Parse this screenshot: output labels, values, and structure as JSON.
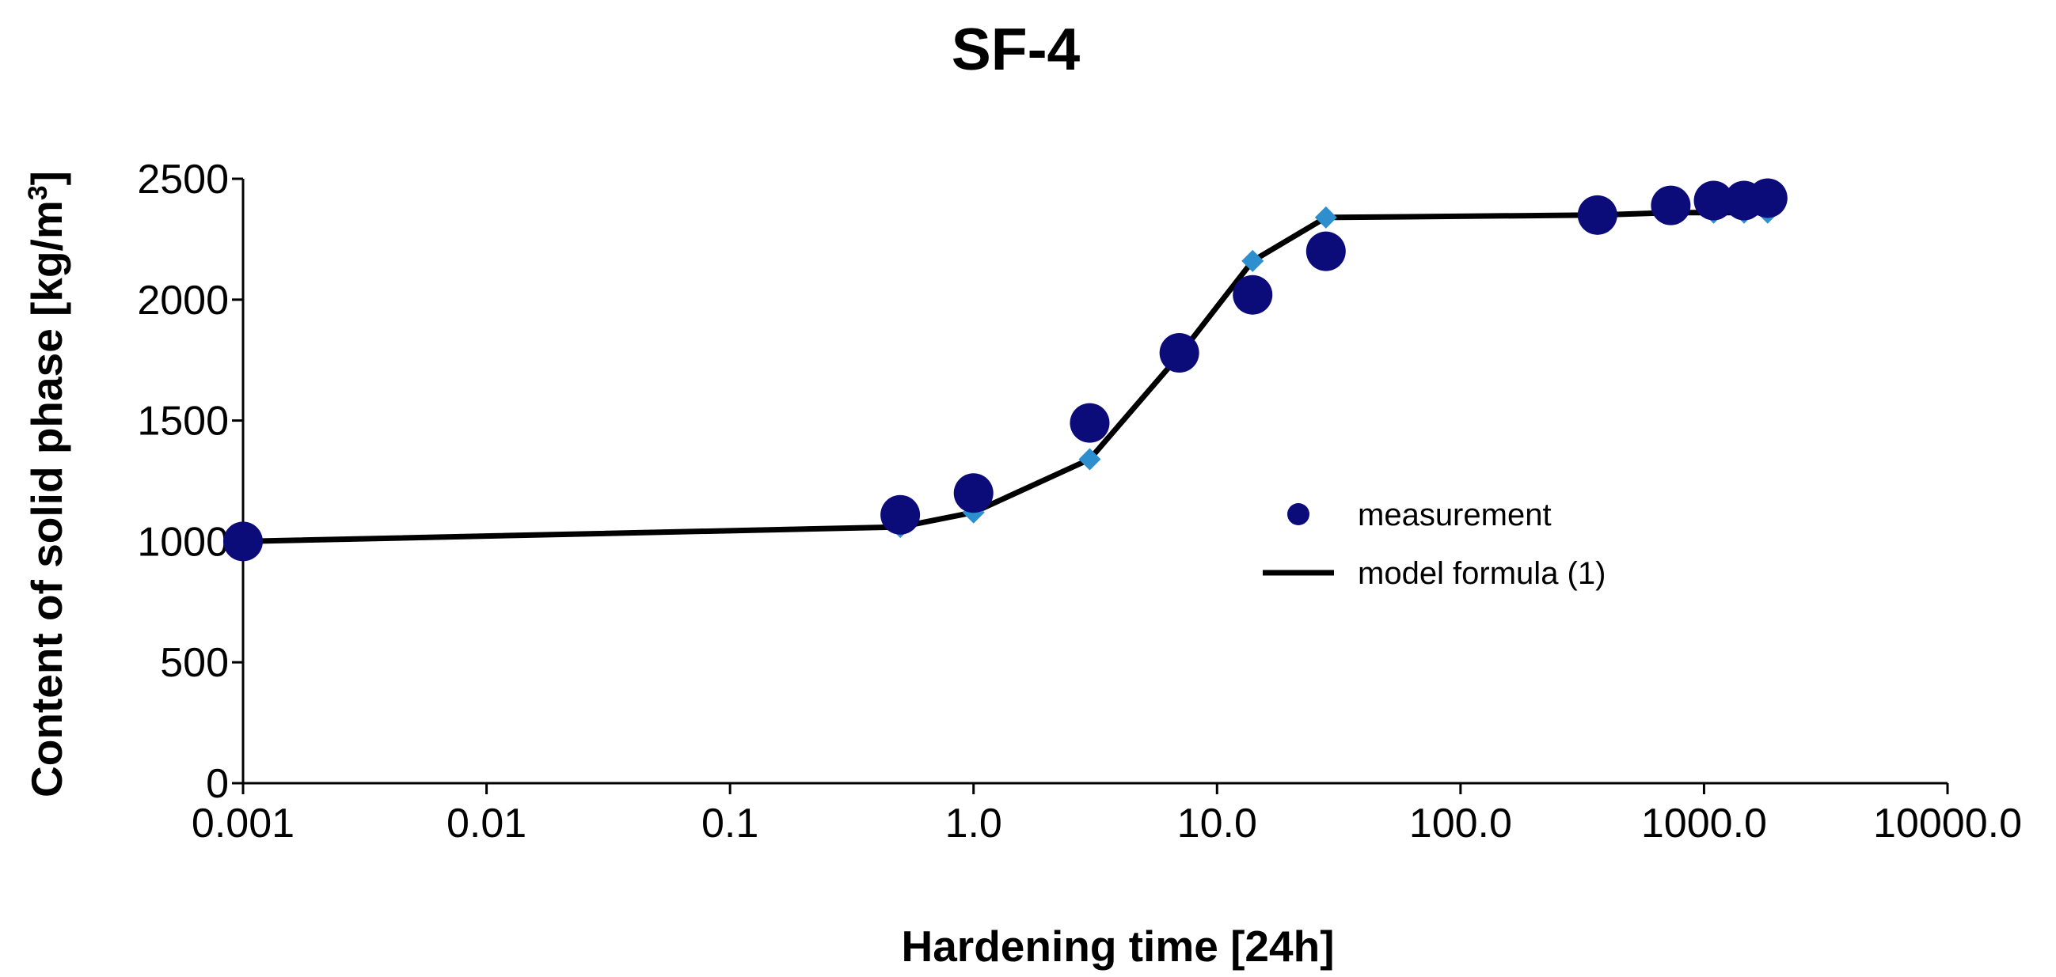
{
  "chart_data": {
    "type": "scatter",
    "title": "SF-4",
    "xlabel": "Hardening time [24h]",
    "ylabel_main": "Content of solid phase [kg/m",
    "ylabel_sup": "3",
    "ylabel_close": "]",
    "xscale": "log",
    "xlim": [
      0.001,
      10000
    ],
    "ylim": [
      0,
      2500
    ],
    "x_ticks": [
      {
        "value": 0.001,
        "label": "0.001"
      },
      {
        "value": 0.01,
        "label": "0.01"
      },
      {
        "value": 0.1,
        "label": "0.1"
      },
      {
        "value": 1,
        "label": "1.0"
      },
      {
        "value": 10,
        "label": "10.0"
      },
      {
        "value": 100,
        "label": "100.0"
      },
      {
        "value": 1000,
        "label": "1000.0"
      },
      {
        "value": 10000,
        "label": "10000.0"
      }
    ],
    "y_ticks": [
      {
        "value": 0,
        "label": "0"
      },
      {
        "value": 500,
        "label": "500"
      },
      {
        "value": 1000,
        "label": "1000"
      },
      {
        "value": 1500,
        "label": "1500"
      },
      {
        "value": 2000,
        "label": "2000"
      },
      {
        "value": 2500,
        "label": "2500"
      }
    ],
    "legend_position": "center-right",
    "series": [
      {
        "name": "measurement",
        "kind": "scatter",
        "color": "#0b0b7a",
        "x": [
          0.001,
          0.5,
          1,
          3,
          7,
          14,
          28,
          365,
          730,
          1095,
          1460,
          1825
        ],
        "y": [
          1000,
          1110,
          1200,
          1490,
          1780,
          2020,
          2200,
          2350,
          2390,
          2410,
          2410,
          2420
        ]
      },
      {
        "name": "model formula (1)",
        "kind": "line",
        "color": "#000000",
        "marker_color": "#2e8fcf",
        "x": [
          0.001,
          0.5,
          1,
          3,
          7,
          14,
          28,
          365,
          730,
          1095,
          1460,
          1825
        ],
        "y": [
          1000,
          1060,
          1120,
          1340,
          1770,
          2160,
          2340,
          2350,
          2360,
          2360,
          2360,
          2360
        ]
      }
    ]
  }
}
